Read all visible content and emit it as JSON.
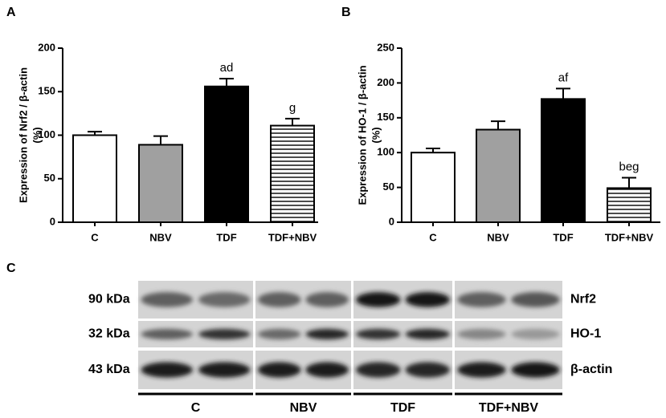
{
  "chart_data": [
    {
      "type": "bar",
      "panel": "A",
      "ylabel": [
        "Expression of Nrf2 / β-actin",
        "(%)"
      ],
      "categories": [
        "C",
        "NBV",
        "TDF",
        "TDF+NBV"
      ],
      "values": [
        100,
        89,
        156,
        111
      ],
      "errors": [
        4,
        10,
        9,
        8
      ],
      "annotations": [
        null,
        null,
        "ad",
        "g"
      ],
      "colors": [
        "#ffffff",
        "#a0a0a0",
        "#000000",
        "#ffffff"
      ],
      "patterns": [
        null,
        null,
        null,
        "horizontal"
      ],
      "ylim": [
        0,
        200
      ],
      "yticks": [
        0,
        50,
        100,
        150,
        200
      ]
    },
    {
      "type": "bar",
      "panel": "B",
      "ylabel": [
        "Expression of HO-1 / β-actin",
        "(%)"
      ],
      "categories": [
        "C",
        "NBV",
        "TDF",
        "TDF+NBV"
      ],
      "values": [
        100,
        133,
        177,
        49
      ],
      "errors": [
        6,
        12,
        15,
        15
      ],
      "annotations": [
        null,
        null,
        "af",
        "beg"
      ],
      "colors": [
        "#ffffff",
        "#a0a0a0",
        "#000000",
        "#ffffff"
      ],
      "patterns": [
        null,
        null,
        null,
        "horizontal"
      ],
      "ylim": [
        0,
        250
      ],
      "yticks": [
        0,
        50,
        100,
        150,
        200,
        250
      ]
    }
  ],
  "blot": {
    "panel": "C",
    "sizes": [
      "90 kDa",
      "32 kDa",
      "43 kDa"
    ],
    "proteins": [
      "Nrf2",
      "HO-1",
      "β-actin"
    ],
    "groups": [
      "C",
      "NBV",
      "TDF",
      "TDF+NBV"
    ]
  }
}
